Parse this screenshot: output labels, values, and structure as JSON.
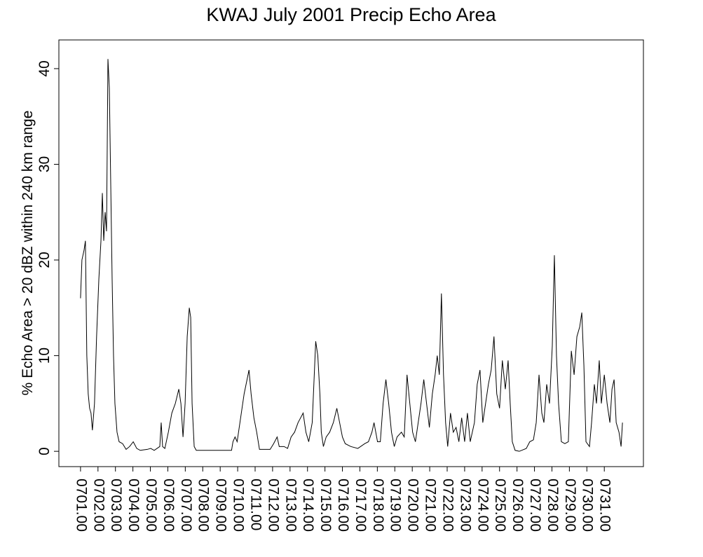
{
  "chart_data": {
    "type": "line",
    "title": "KWAJ July 2001 Precip Echo Area",
    "y_label": "% Echo Area > 20 dBZ within 240 km range",
    "color": "#000000",
    "xlim": [
      -0.24,
      33.24
    ],
    "ylim": [
      -1.6,
      43.0
    ],
    "yticks": [
      0,
      10,
      20,
      30,
      40
    ],
    "xticks": [
      {
        "value": 1,
        "label": "0701.00"
      },
      {
        "value": 2,
        "label": "0702.00"
      },
      {
        "value": 3,
        "label": "0703.00"
      },
      {
        "value": 4,
        "label": "0704.00"
      },
      {
        "value": 5,
        "label": "0705.00"
      },
      {
        "value": 6,
        "label": "0706.00"
      },
      {
        "value": 7,
        "label": "0707.00"
      },
      {
        "value": 8,
        "label": "0708.00"
      },
      {
        "value": 9,
        "label": "0709.00"
      },
      {
        "value": 10,
        "label": "0710.00"
      },
      {
        "value": 11,
        "label": "0711.00"
      },
      {
        "value": 12,
        "label": "0712.00"
      },
      {
        "value": 13,
        "label": "0713.00"
      },
      {
        "value": 14,
        "label": "0714.00"
      },
      {
        "value": 15,
        "label": "0715.00"
      },
      {
        "value": 16,
        "label": "0716.00"
      },
      {
        "value": 17,
        "label": "0717.00"
      },
      {
        "value": 18,
        "label": "0718.00"
      },
      {
        "value": 19,
        "label": "0719.00"
      },
      {
        "value": 20,
        "label": "0720.00"
      },
      {
        "value": 21,
        "label": "0721.00"
      },
      {
        "value": 22,
        "label": "0722.00"
      },
      {
        "value": 23,
        "label": "0723.00"
      },
      {
        "value": 24,
        "label": "0724.00"
      },
      {
        "value": 25,
        "label": "0725.00"
      },
      {
        "value": 26,
        "label": "0726.00"
      },
      {
        "value": 27,
        "label": "0727.00"
      },
      {
        "value": 28,
        "label": "0728.00"
      },
      {
        "value": 29,
        "label": "0729.00"
      },
      {
        "value": 30,
        "label": "0730.00"
      },
      {
        "value": 31,
        "label": "0731.00"
      }
    ],
    "x": [
      1.0,
      1.08,
      1.2,
      1.28,
      1.36,
      1.44,
      1.52,
      1.6,
      1.68,
      1.8,
      1.92,
      2.05,
      2.17,
      2.25,
      2.33,
      2.41,
      2.49,
      2.57,
      2.65,
      2.73,
      2.81,
      2.89,
      2.97,
      3.09,
      3.21,
      3.41,
      3.61,
      3.81,
      4.02,
      4.22,
      4.42,
      4.82,
      5.02,
      5.22,
      5.54,
      5.62,
      5.7,
      5.83,
      6.03,
      6.23,
      6.43,
      6.63,
      6.75,
      6.87,
      6.99,
      7.11,
      7.23,
      7.31,
      7.39,
      7.51,
      7.63,
      9.65,
      9.73,
      9.85,
      9.97,
      10.13,
      10.37,
      10.65,
      10.77,
      10.93,
      11.09,
      11.25,
      11.86,
      12.06,
      12.26,
      12.38,
      12.66,
      12.86,
      13.06,
      13.26,
      13.46,
      13.75,
      13.91,
      14.07,
      14.27,
      14.47,
      14.59,
      14.71,
      14.79,
      14.91,
      15.07,
      15.27,
      15.48,
      15.68,
      15.84,
      16.0,
      16.16,
      16.48,
      16.88,
      17.28,
      17.49,
      17.69,
      17.81,
      18.01,
      18.17,
      18.33,
      18.49,
      18.65,
      18.81,
      18.97,
      19.13,
      19.38,
      19.54,
      19.7,
      19.86,
      20.02,
      20.18,
      20.34,
      20.5,
      20.66,
      20.82,
      20.98,
      21.15,
      21.31,
      21.43,
      21.55,
      21.67,
      21.79,
      21.91,
      22.03,
      22.19,
      22.35,
      22.51,
      22.67,
      22.83,
      23.0,
      23.16,
      23.32,
      23.56,
      23.72,
      23.88,
      24.04,
      24.2,
      24.36,
      24.52,
      24.68,
      24.84,
      25.0,
      25.16,
      25.33,
      25.49,
      25.61,
      25.73,
      25.89,
      26.13,
      26.53,
      26.73,
      26.94,
      27.1,
      27.26,
      27.42,
      27.54,
      27.7,
      27.86,
      28.02,
      28.14,
      28.26,
      28.38,
      28.54,
      28.74,
      28.94,
      29.11,
      29.27,
      29.43,
      29.59,
      29.71,
      29.83,
      29.95,
      30.15,
      30.27,
      30.43,
      30.55,
      30.71,
      30.83,
      31.0,
      31.16,
      31.32,
      31.44,
      31.56,
      31.68,
      31.84,
      31.96,
      32.04
    ],
    "values": [
      16,
      20,
      21,
      22,
      10,
      6,
      4.5,
      4,
      2.2,
      5,
      12,
      18,
      22,
      27,
      22,
      25,
      23,
      41,
      38,
      28,
      18,
      10,
      5,
      2,
      1,
      0.8,
      0.2,
      0.5,
      1,
      0.3,
      0.1,
      0.2,
      0.3,
      0.1,
      0.5,
      3,
      0.5,
      0.3,
      2,
      4,
      5,
      6.5,
      5,
      1.5,
      5,
      12,
      15,
      14,
      5,
      0.5,
      0.1,
      0.1,
      1,
      1.5,
      1,
      3,
      6,
      8.5,
      6,
      3.5,
      2,
      0.2,
      0.2,
      0.8,
      1.5,
      0.5,
      0.5,
      0.3,
      1.5,
      2,
      3,
      4,
      2,
      1,
      3,
      11.5,
      10,
      6,
      2,
      0.5,
      1.5,
      2,
      3,
      4.5,
      3,
      1.5,
      0.8,
      0.5,
      0.3,
      0.8,
      1,
      2,
      3,
      1,
      1,
      5,
      7.5,
      5,
      2,
      0.5,
      1.5,
      2,
      1.5,
      8,
      5,
      2,
      1,
      3,
      5,
      7.5,
      5,
      2.5,
      6,
      8,
      10,
      8,
      16.5,
      8,
      3,
      0.5,
      4,
      2,
      2.5,
      1,
      3.5,
      1,
      4,
      1,
      3,
      7,
      8.5,
      3,
      5,
      7,
      8.5,
      12,
      6,
      4.5,
      9.5,
      6.5,
      9.5,
      5,
      1,
      0.1,
      0,
      0.3,
      1,
      1.2,
      3,
      8,
      4,
      3,
      7,
      5,
      11,
      20.5,
      10,
      5,
      1,
      0.8,
      1,
      10.5,
      8,
      12,
      13,
      14.5,
      9,
      1,
      0.5,
      3,
      7,
      5,
      9.5,
      5,
      8,
      5,
      3,
      6.5,
      7.5,
      3,
      2,
      0.5,
      3
    ]
  }
}
